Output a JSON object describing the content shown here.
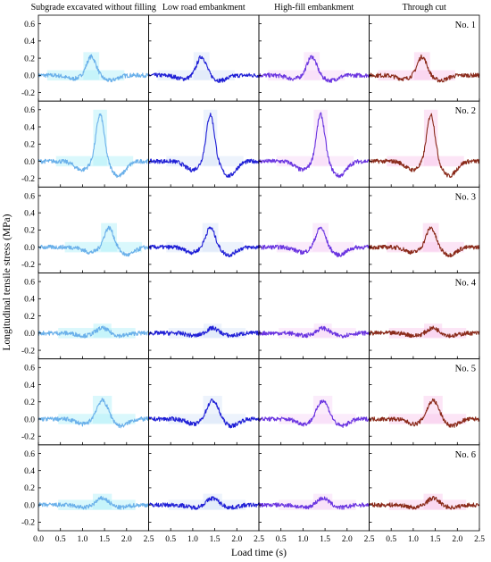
{
  "chart_data": {
    "type": "line",
    "xlabel": "Load time (s)",
    "ylabel": "Longitudinal tensile stress (MPa)",
    "x_ticks": [
      "0.0",
      "0.5",
      "1.0",
      "1.5",
      "2.0",
      "2.5"
    ],
    "y_ticks": [
      "-0.2",
      "0.0",
      "0.2",
      "0.4",
      "0.6"
    ],
    "xlim": [
      0,
      2.5
    ],
    "ylim": [
      -0.3,
      0.7
    ],
    "grid": false,
    "columns": [
      {
        "title": "Subgrade excavated without filling",
        "color": "#6ab0ea",
        "shadow_color": "#aef0f8"
      },
      {
        "title": "Low road embankment",
        "color": "#1f1fd6",
        "shadow_color": "#d8e4f8"
      },
      {
        "title": "High-fill embankment",
        "color": "#6a34e0",
        "shadow_color": "#f6d4f6"
      },
      {
        "title": "Through cut",
        "color": "#8a2a1a",
        "shadow_color": "#f8c6ec"
      }
    ],
    "rows": [
      {
        "label": "No. 1",
        "peak_time": [
          1.2,
          1.2,
          1.2,
          1.2
        ],
        "peak": [
          0.22,
          0.22,
          0.22,
          0.22
        ],
        "trough_before": -0.04,
        "trough_after": -0.06,
        "width": 0.15
      },
      {
        "label": "No. 2",
        "peak_time": [
          1.4,
          1.4,
          1.4,
          1.4
        ],
        "peak": [
          0.55,
          0.55,
          0.55,
          0.55
        ],
        "trough_before": -0.1,
        "trough_after": -0.17,
        "width": 0.13
      },
      {
        "label": "No. 3",
        "peak_time": [
          1.6,
          1.4,
          1.4,
          1.4
        ],
        "peak": [
          0.23,
          0.23,
          0.23,
          0.23
        ],
        "trough_before": -0.06,
        "trough_after": -0.09,
        "width": 0.15
      },
      {
        "label": "No. 4",
        "peak_time": [
          1.45,
          1.45,
          1.45,
          1.45
        ],
        "peak": [
          0.06,
          0.06,
          0.06,
          0.06
        ],
        "trough_before": -0.03,
        "trough_after": -0.03,
        "width": 0.17
      },
      {
        "label": "No. 5",
        "peak_time": [
          1.45,
          1.45,
          1.45,
          1.45
        ],
        "peak": [
          0.22,
          0.22,
          0.22,
          0.22
        ],
        "trough_before": -0.06,
        "trough_after": -0.08,
        "width": 0.18
      },
      {
        "label": "No. 6",
        "peak_time": [
          1.45,
          1.45,
          1.45,
          1.45
        ],
        "peak": [
          0.08,
          0.08,
          0.08,
          0.08
        ],
        "trough_before": -0.03,
        "trough_after": -0.03,
        "width": 0.18
      }
    ]
  }
}
